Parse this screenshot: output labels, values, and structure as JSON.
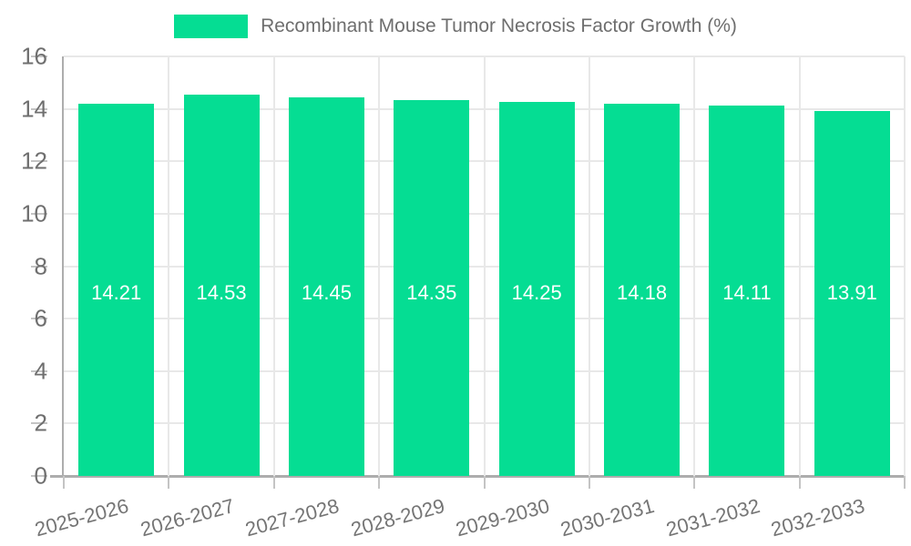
{
  "legend": {
    "label": "Recombinant Mouse Tumor Necrosis Factor Growth (%)"
  },
  "chart_data": {
    "type": "bar",
    "title": "Recombinant Mouse Tumor Necrosis Factor Growth (%)",
    "legend": "Recombinant Mouse Tumor Necrosis Factor Growth (%)",
    "legend_position": "top-center",
    "categories": [
      "2025-2026",
      "2026-2027",
      "2027-2028",
      "2028-2029",
      "2029-2030",
      "2030-2031",
      "2031-2032",
      "2032-2033"
    ],
    "values": [
      14.21,
      14.53,
      14.45,
      14.35,
      14.25,
      14.18,
      14.11,
      13.91
    ],
    "value_labels": [
      "14.21",
      "14.53",
      "14.45",
      "14.35",
      "14.25",
      "14.18",
      "14.11",
      "13.91"
    ],
    "xlabel": "",
    "ylabel": "",
    "ylim": [
      0,
      16
    ],
    "yticks": [
      0,
      2,
      4,
      6,
      8,
      10,
      12,
      14,
      16
    ],
    "grid": true,
    "colors": {
      "bar": "#05dd93",
      "grid": "#e8e8e8",
      "axis": "#adadad",
      "tick": "#c4c4c4",
      "tick_text": "#6f6f6f",
      "xtick_text": "#757575",
      "value_text": "#ffffff",
      "legend_text": "#6e6e6e"
    }
  }
}
